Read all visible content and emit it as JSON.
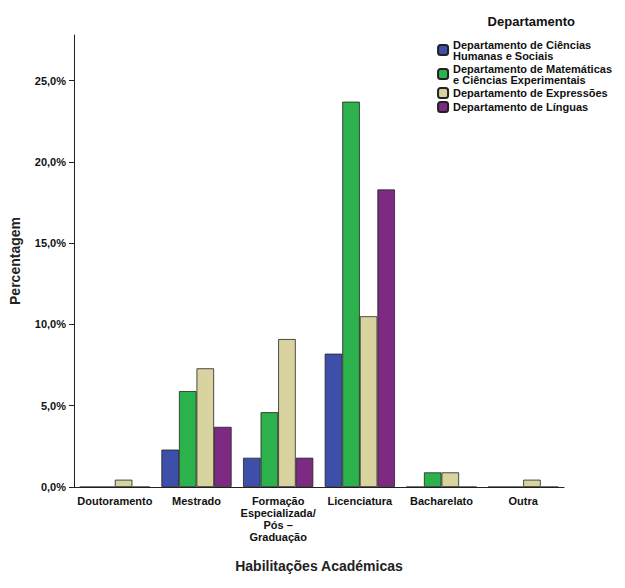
{
  "chart_data": {
    "type": "bar",
    "x_label": "Habilitações Académicas",
    "y_label": "Percentagem",
    "legend_title": "Departamento",
    "categories": [
      "Doutoramento",
      "Mestrado",
      "Formação\nEspecializada/\nPós –\nGraduação",
      "Licenciatura",
      "Bacharelato",
      "Outra"
    ],
    "series": [
      {
        "name": "Departamento de Ciências\nHumanas e Sociais",
        "color": "#3d4fa8",
        "values": [
          0,
          2.3,
          1.8,
          8.2,
          0,
          0
        ]
      },
      {
        "name": "Departamento de Matemáticas\ne Ciências Experimentais",
        "color": "#2bb24c",
        "values": [
          0,
          5.9,
          4.6,
          23.7,
          0.9,
          0
        ]
      },
      {
        "name": "Departamento de Expressões",
        "color": "#d9d49f",
        "values": [
          0.45,
          7.3,
          9.1,
          10.5,
          0.9,
          0.45
        ]
      },
      {
        "name": "Departamento de Línguas",
        "color": "#7d2a82",
        "values": [
          0,
          3.7,
          1.8,
          18.3,
          0,
          0
        ]
      }
    ],
    "ylim": [
      0,
      27.8
    ],
    "yticks": [
      {
        "value": 0,
        "label": "0,0%"
      },
      {
        "value": 5,
        "label": "5,0%"
      },
      {
        "value": 10,
        "label": "10,0%"
      },
      {
        "value": 15,
        "label": "15,0%"
      },
      {
        "value": 20,
        "label": "20,0%"
      },
      {
        "value": 25,
        "label": "25,0%"
      }
    ],
    "grid": false,
    "legend": "upper right"
  }
}
